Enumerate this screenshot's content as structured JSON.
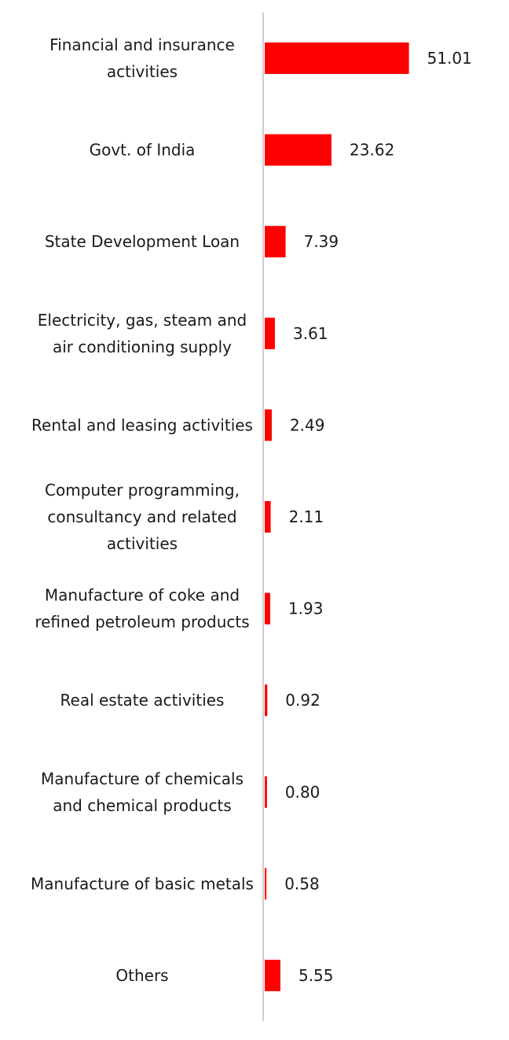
{
  "chart_data": {
    "type": "bar",
    "orientation": "horizontal",
    "categories": [
      [
        "Financial and insurance",
        "activities"
      ],
      [
        "Govt. of India"
      ],
      [
        "State Development Loan"
      ],
      [
        "Electricity, gas, steam and",
        "air conditioning supply"
      ],
      [
        "Rental and leasing activities"
      ],
      [
        "Computer programming,",
        "consultancy and related",
        "activities"
      ],
      [
        "Manufacture of coke and",
        "refined petroleum products"
      ],
      [
        "Real estate activities"
      ],
      [
        "Manufacture of chemicals",
        "and chemical products"
      ],
      [
        "Manufacture of basic metals"
      ],
      [
        "Others"
      ]
    ],
    "values": [
      51.01,
      23.62,
      7.39,
      3.61,
      2.49,
      2.11,
      1.93,
      0.92,
      0.8,
      0.58,
      5.55
    ],
    "value_labels": [
      "51.01",
      "23.62",
      "7.39",
      "3.61",
      "2.49",
      "2.11",
      "1.93",
      "0.92",
      "0.80",
      "0.58",
      "5.55"
    ],
    "bar_color": "#ff0000",
    "axis_color": "#cccccc",
    "title": "",
    "xlabel": "",
    "ylabel": "",
    "grid": false,
    "legend": "none"
  }
}
